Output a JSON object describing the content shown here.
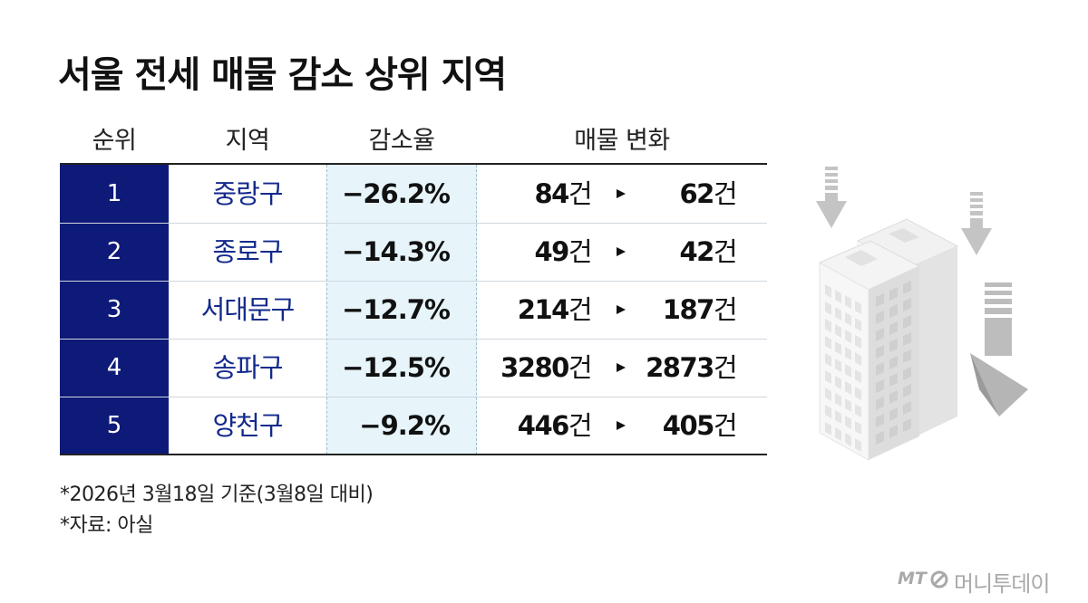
{
  "title": "서울 전세 매물 감소 상위 지역",
  "headers": {
    "rank": "순위",
    "region": "지역",
    "rate": "감소율",
    "change": "매물 변화"
  },
  "unit": "건",
  "rows": [
    {
      "rank": "1",
      "region": "중랑구",
      "rate": "−26.2%",
      "before": "84",
      "after": "62"
    },
    {
      "rank": "2",
      "region": "종로구",
      "rate": "−14.3%",
      "before": "49",
      "after": "42"
    },
    {
      "rank": "3",
      "region": "서대문구",
      "rate": "−12.7%",
      "before": "214",
      "after": "187"
    },
    {
      "rank": "4",
      "region": "송파구",
      "rate": "−12.5%",
      "before": "3280",
      "after": "2873"
    },
    {
      "rank": "5",
      "region": "양천구",
      "rate": "−9.2%",
      "before": "446",
      "after": "405"
    }
  ],
  "notes": {
    "basis": "*2026년 3월18일 기준(3월8일 대비)",
    "source": "*자료: 아실"
  },
  "logo": {
    "prefix": "MT",
    "name": "머니투데이"
  },
  "colors": {
    "rank_bg": "#0d1a78",
    "region_text": "#132a8c",
    "rate_bg": "#e7f5fb"
  },
  "chart_data": {
    "type": "table",
    "title": "서울 전세 매물 감소 상위 지역",
    "columns": [
      "순위",
      "지역",
      "감소율",
      "매물 변화"
    ],
    "rows": [
      {
        "순위": 1,
        "지역": "중랑구",
        "감소율": -26.2,
        "매물 이전": 84,
        "매물 이후": 62
      },
      {
        "순위": 2,
        "지역": "종로구",
        "감소율": -14.3,
        "매물 이전": 49,
        "매물 이후": 42
      },
      {
        "순위": 3,
        "지역": "서대문구",
        "감소율": -12.7,
        "매물 이전": 214,
        "매물 이후": 187
      },
      {
        "순위": 4,
        "지역": "송파구",
        "감소율": -12.5,
        "매물 이전": 3280,
        "매물 이후": 2873
      },
      {
        "순위": 5,
        "지역": "양천구",
        "감소율": -9.2,
        "매물 이전": 446,
        "매물 이후": 405
      }
    ]
  }
}
